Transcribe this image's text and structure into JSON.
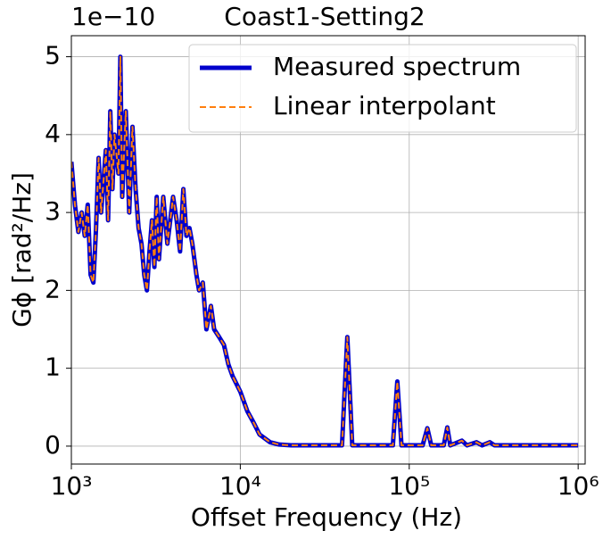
{
  "chart_data": {
    "type": "line",
    "title": "Coast1-Setting2",
    "x_label": "Offset Frequency (Hz)",
    "y_label": "Gϕ [rad²/Hz]",
    "offset_label": "1e−10",
    "x": [
      1000,
      1050,
      1100,
      1150,
      1200,
      1250,
      1300,
      1350,
      1400,
      1450,
      1500,
      1600,
      1650,
      1700,
      1750,
      1800,
      1900,
      1950,
      2000,
      2100,
      2200,
      2300,
      2400,
      2500,
      2600,
      2700,
      2800,
      2900,
      3000,
      3100,
      3200,
      3300,
      3500,
      3700,
      3800,
      4000,
      4200,
      4400,
      4600,
      4800,
      5000,
      5200,
      5500,
      5700,
      6000,
      6300,
      6700,
      7000,
      7500,
      8000,
      8500,
      9000,
      10000,
      11000,
      12000,
      13000,
      15000,
      17000,
      20000,
      40000,
      43000,
      46000,
      80000,
      85000,
      90000,
      120000,
      128000,
      135000,
      160000,
      168000,
      175000,
      205000,
      220000,
      250000,
      270000,
      300000,
      320000,
      1000000
    ],
    "series": [
      {
        "name": "Measured spectrum",
        "color": "#0000cc",
        "values": [
          3.65,
          3.1,
          2.75,
          3.0,
          2.7,
          3.1,
          2.2,
          2.1,
          2.8,
          3.7,
          3.0,
          3.8,
          2.9,
          4.3,
          3.3,
          4.0,
          3.5,
          5.0,
          3.2,
          4.3,
          3.0,
          4.1,
          3.3,
          2.8,
          2.6,
          2.2,
          2.0,
          2.5,
          2.9,
          2.3,
          3.2,
          2.4,
          3.2,
          2.6,
          2.8,
          3.2,
          2.9,
          2.5,
          3.3,
          2.7,
          2.8,
          2.6,
          2.2,
          2.0,
          2.1,
          1.5,
          1.8,
          1.5,
          1.4,
          1.3,
          1.05,
          0.9,
          0.7,
          0.45,
          0.3,
          0.15,
          0.05,
          0.02,
          0.01,
          0.01,
          1.4,
          0.01,
          0.01,
          0.83,
          0.01,
          0.01,
          0.23,
          0.01,
          0.01,
          0.24,
          0.01,
          0.07,
          0.01,
          0.05,
          0.01,
          0.05,
          0.01,
          0.01
        ]
      },
      {
        "name": "Linear interpolant",
        "color": "#ff7f0e",
        "values": [
          3.65,
          3.1,
          2.75,
          3.0,
          2.7,
          3.1,
          2.2,
          2.1,
          2.8,
          3.7,
          3.0,
          3.8,
          2.9,
          4.3,
          3.3,
          4.0,
          3.5,
          5.0,
          3.2,
          4.3,
          3.0,
          4.1,
          3.3,
          2.8,
          2.6,
          2.2,
          2.0,
          2.5,
          2.9,
          2.3,
          3.2,
          2.4,
          3.2,
          2.6,
          2.8,
          3.2,
          2.9,
          2.5,
          3.3,
          2.7,
          2.8,
          2.6,
          2.2,
          2.0,
          2.1,
          1.5,
          1.8,
          1.5,
          1.4,
          1.3,
          1.05,
          0.9,
          0.7,
          0.45,
          0.3,
          0.15,
          0.05,
          0.02,
          0.01,
          0.01,
          1.4,
          0.01,
          0.01,
          0.83,
          0.01,
          0.01,
          0.23,
          0.01,
          0.01,
          0.24,
          0.01,
          0.07,
          0.01,
          0.05,
          0.01,
          0.05,
          0.01,
          0.01
        ]
      }
    ],
    "xlim": [
      1000,
      1100000
    ],
    "xscale": "log",
    "xticks": [
      {
        "value": 1000,
        "label": "10³"
      },
      {
        "value": 10000,
        "label": "10⁴"
      },
      {
        "value": 100000,
        "label": "10⁵"
      },
      {
        "value": 1000000,
        "label": "10⁶"
      }
    ],
    "ylim": [
      -0.23,
      5.27
    ],
    "yticks": [
      0,
      1,
      2,
      3,
      4,
      5
    ],
    "grid": true,
    "legend": "upper right"
  }
}
